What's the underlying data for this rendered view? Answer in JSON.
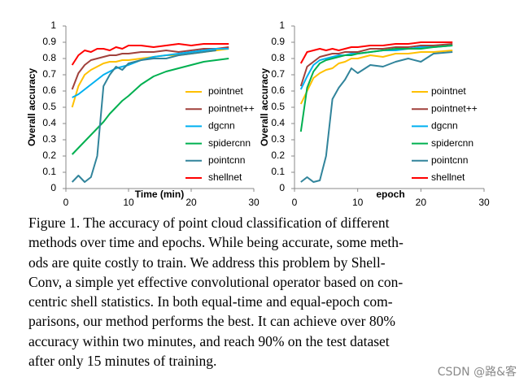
{
  "chart_data": [
    {
      "type": "line",
      "x_label": "Time (min)",
      "y_label": "Overall accuracy",
      "xlim": [
        0,
        30
      ],
      "xticks": [
        0,
        10,
        20,
        30
      ],
      "ylim": [
        0,
        1
      ],
      "yticks": [
        0,
        0.1,
        0.2,
        0.3,
        0.4,
        0.5,
        0.6,
        0.7,
        0.8,
        0.9,
        1
      ],
      "x": [
        1,
        2,
        3,
        4,
        5,
        6,
        7,
        8,
        9,
        10,
        12,
        14,
        16,
        18,
        20,
        22,
        24,
        26
      ],
      "series": [
        {
          "name": "pointnet",
          "color": "#ffc000",
          "values": [
            0.5,
            0.63,
            0.7,
            0.73,
            0.75,
            0.77,
            0.78,
            0.78,
            0.79,
            0.79,
            0.8,
            0.81,
            0.82,
            0.82,
            0.83,
            0.84,
            0.85,
            0.86
          ]
        },
        {
          "name": "pointnet++",
          "color": "#a0413c",
          "values": [
            0.61,
            0.71,
            0.76,
            0.79,
            0.8,
            0.81,
            0.82,
            0.82,
            0.83,
            0.83,
            0.84,
            0.84,
            0.85,
            0.84,
            0.85,
            0.86,
            0.86,
            0.87
          ]
        },
        {
          "name": "dgcnn",
          "color": "#00b0f0",
          "values": [
            0.56,
            0.58,
            0.61,
            0.64,
            0.67,
            0.7,
            0.72,
            0.74,
            0.75,
            0.76,
            0.79,
            0.81,
            0.82,
            0.83,
            0.84,
            0.85,
            0.86,
            0.86
          ]
        },
        {
          "name": "spidercnn",
          "color": "#00b050",
          "values": [
            0.21,
            0.25,
            0.29,
            0.33,
            0.37,
            0.41,
            0.46,
            0.5,
            0.54,
            0.57,
            0.64,
            0.69,
            0.72,
            0.74,
            0.76,
            0.78,
            0.79,
            0.8
          ]
        },
        {
          "name": "pointcnn",
          "color": "#31849b",
          "values": [
            0.04,
            0.08,
            0.04,
            0.07,
            0.2,
            0.63,
            0.7,
            0.75,
            0.73,
            0.77,
            0.79,
            0.8,
            0.8,
            0.82,
            0.83,
            0.84,
            0.85,
            null
          ]
        },
        {
          "name": "shellnet",
          "color": "#ff0000",
          "values": [
            0.76,
            0.82,
            0.85,
            0.84,
            0.86,
            0.86,
            0.85,
            0.87,
            0.86,
            0.88,
            0.88,
            0.87,
            0.88,
            0.89,
            0.88,
            0.89,
            0.89,
            0.89
          ]
        }
      ]
    },
    {
      "type": "line",
      "x_label": "epoch",
      "y_label": "Overall accuracy",
      "xlim": [
        0,
        30
      ],
      "xticks": [
        0,
        10,
        20,
        30
      ],
      "ylim": [
        0,
        1
      ],
      "yticks": [
        0,
        0.1,
        0.2,
        0.3,
        0.4,
        0.5,
        0.6,
        0.7,
        0.8,
        0.9,
        1
      ],
      "x": [
        1,
        2,
        3,
        4,
        5,
        6,
        7,
        8,
        9,
        10,
        12,
        14,
        16,
        18,
        20,
        22,
        25
      ],
      "series": [
        {
          "name": "pointnet",
          "color": "#ffc000",
          "values": [
            0.52,
            0.6,
            0.68,
            0.71,
            0.73,
            0.74,
            0.77,
            0.78,
            0.8,
            0.8,
            0.82,
            0.81,
            0.83,
            0.83,
            0.84,
            0.84,
            0.85
          ]
        },
        {
          "name": "pointnet++",
          "color": "#a0413c",
          "values": [
            0.63,
            0.75,
            0.78,
            0.81,
            0.82,
            0.83,
            0.83,
            0.84,
            0.84,
            0.84,
            0.86,
            0.86,
            0.87,
            0.87,
            0.88,
            0.88,
            0.89
          ]
        },
        {
          "name": "dgcnn",
          "color": "#00b0f0",
          "values": [
            0.61,
            0.69,
            0.76,
            0.79,
            0.8,
            0.81,
            0.82,
            0.82,
            0.83,
            0.83,
            0.84,
            0.85,
            0.85,
            0.86,
            0.87,
            0.87,
            0.88
          ]
        },
        {
          "name": "spidercnn",
          "color": "#00b050",
          "values": [
            0.35,
            0.62,
            0.72,
            0.77,
            0.79,
            0.8,
            0.81,
            0.82,
            0.82,
            0.83,
            0.84,
            0.85,
            0.86,
            0.86,
            0.86,
            0.87,
            0.88
          ]
        },
        {
          "name": "pointcnn",
          "color": "#31849b",
          "values": [
            0.04,
            0.07,
            0.04,
            0.05,
            0.2,
            0.55,
            0.62,
            0.67,
            0.74,
            0.71,
            0.76,
            0.75,
            0.78,
            0.8,
            0.78,
            0.83,
            0.84
          ]
        },
        {
          "name": "shellnet",
          "color": "#ff0000",
          "values": [
            0.77,
            0.84,
            0.85,
            0.86,
            0.85,
            0.86,
            0.85,
            0.86,
            0.87,
            0.87,
            0.88,
            0.88,
            0.89,
            0.89,
            0.9,
            0.9,
            0.9
          ]
        }
      ]
    }
  ],
  "caption": [
    "Figure 1. The accuracy of point cloud classification of different",
    "methods over time and epochs. While being accurate, some meth-",
    "ods are quite costly to train.  We address this problem by Shell-",
    "Conv, a simple yet effective convolutional operator based on con-",
    "centric shell statistics.  In both equal-time and equal-epoch com-",
    "parisons, our method performs the best.  It can achieve over 80%",
    "accuracy within two minutes, and reach 90% on the test dataset",
    "after only 15 minutes of training."
  ],
  "watermark": "CSDN @路&客"
}
